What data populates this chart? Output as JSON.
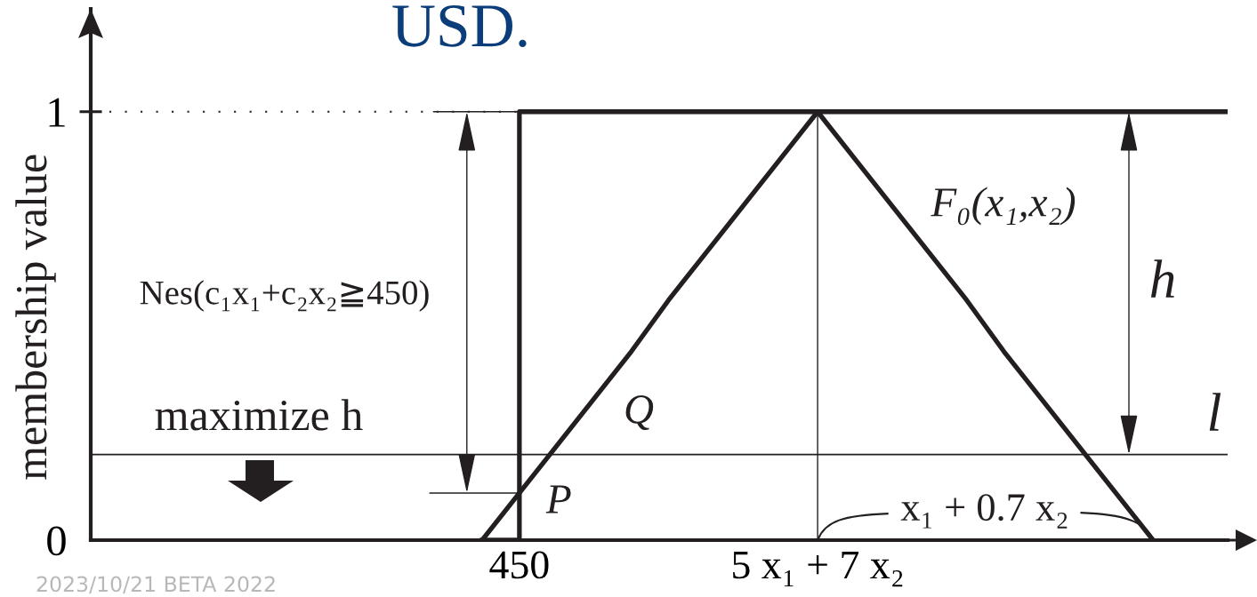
{
  "chart_data": {
    "type": "line",
    "title": "USD.",
    "ylabel": "membership value",
    "categories": [
      null,
      null,
      null,
      null,
      null,
      null,
      null,
      null,
      null,
      null,
      null,
      "450",
      null,
      null,
      null,
      null,
      null,
      null,
      null,
      "5 x₁ + 7 x₂",
      null,
      null,
      null,
      null,
      null,
      null,
      null,
      null,
      null,
      null,
      null
    ],
    "ylim": [
      0,
      1.24
    ],
    "yticks": [
      0,
      1
    ],
    "series": [
      {
        "name": "Nes(c₁x₁+c₂x₂≧450)",
        "type": "step",
        "color": "#231f20",
        "values": [
          null,
          null,
          null,
          null,
          null,
          null,
          null,
          null,
          null,
          null,
          0,
          1,
          1,
          1,
          1,
          1,
          1,
          1,
          1,
          1,
          1,
          1,
          1,
          1,
          1,
          1,
          1,
          1,
          1,
          1,
          1
        ]
      },
      {
        "name": "F₀(x₁,x₂)",
        "color": "#231f20",
        "values": [
          null,
          null,
          null,
          null,
          null,
          null,
          null,
          null,
          null,
          null,
          0,
          0.11,
          0.22,
          0.33,
          0.44,
          0.56,
          0.67,
          0.78,
          0.89,
          1,
          0.89,
          0.78,
          0.67,
          0.56,
          0.44,
          0.33,
          0.22,
          0.11,
          0,
          null,
          null
        ]
      },
      {
        "color": "#231f20",
        "line_style": "dotted",
        "values": [
          1,
          1,
          1,
          1,
          1,
          1,
          1,
          1,
          1,
          1,
          1,
          1,
          null,
          null,
          null,
          null,
          null,
          null,
          null,
          null,
          null,
          null,
          null,
          null,
          null,
          null,
          null,
          null,
          null,
          null,
          null
        ]
      }
    ],
    "ref_lines": [
      {
        "axis": "y",
        "value": 0.2,
        "label": "l",
        "color": "#231f20"
      },
      {
        "axis": "x",
        "value": "5 x₁ + 7 x₂",
        "color": "#231f20"
      }
    ],
    "annotations": [
      "maximize h",
      "Q",
      {
        "text": "P",
        "x": "450",
        "y": 0.11
      },
      "h",
      {
        "text": "x₁ + 0.7 x₂",
        "x": "5 x₁ + 7 x₂",
        "y": 0
      },
      "2023/10/21 BETA 2022"
    ]
  }
}
